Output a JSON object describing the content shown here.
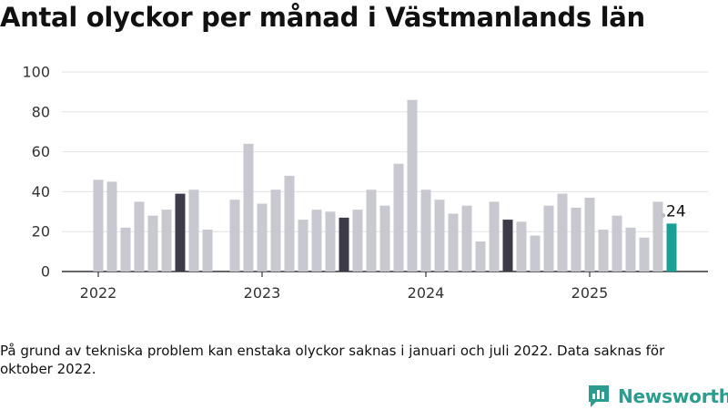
{
  "title": "Antal olyckor per månad i Västmanlands län",
  "footnote": "På grund av tekniska problem kan enstaka olyckor saknas i januari och juli 2022. Data saknas för oktober 2022.",
  "brand": "Newsworthy",
  "colors": {
    "bar": "#c8c8d0",
    "highlight": "#3d3b4a",
    "latest": "#1a9e96",
    "grid": "#e2e2e2",
    "axis": "#333333",
    "brand": "#2a9d8f"
  },
  "chart_data": {
    "type": "bar",
    "ylim": [
      0,
      100
    ],
    "yticks": [
      0,
      20,
      40,
      60,
      80,
      100
    ],
    "xticks": [
      "2022",
      "2023",
      "2024",
      "2025"
    ],
    "last_value_label": "24",
    "grid": true,
    "series": [
      {
        "year": 2022,
        "values": [
          46,
          45,
          22,
          35,
          28,
          31,
          39,
          41,
          21,
          null,
          36,
          64
        ]
      },
      {
        "year": 2023,
        "values": [
          34,
          41,
          48,
          26,
          31,
          30,
          27,
          31,
          41,
          33,
          54,
          86
        ]
      },
      {
        "year": 2024,
        "values": [
          41,
          36,
          29,
          33,
          15,
          35,
          26,
          25,
          18,
          33,
          39,
          32
        ]
      },
      {
        "year": 2025,
        "values": [
          37,
          21,
          28,
          22,
          17,
          35,
          24
        ]
      }
    ],
    "highlighted_month": 7
  }
}
